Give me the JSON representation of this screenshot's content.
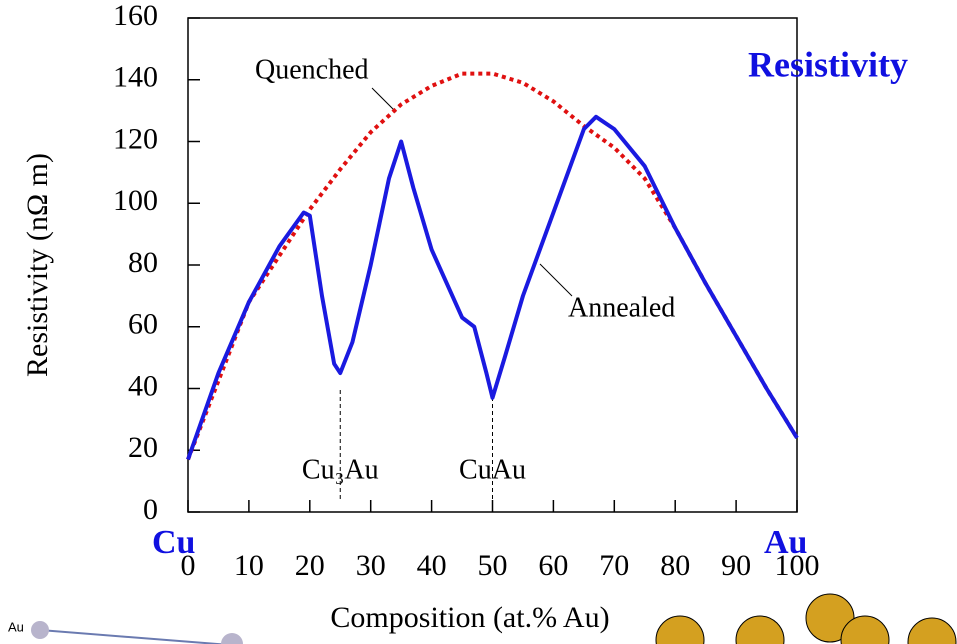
{
  "chart_data": {
    "type": "line",
    "xlabel": "Composition (at.% Au)",
    "ylabel": "Resistivity (nΩ m)",
    "xlim": [
      0,
      100
    ],
    "xticks": [
      0,
      10,
      20,
      30,
      40,
      50,
      60,
      70,
      80,
      90,
      100
    ],
    "ylim": [
      0,
      160
    ],
    "yticks": [
      0,
      20,
      40,
      60,
      80,
      100,
      120,
      140,
      160
    ],
    "series": [
      {
        "name": "Quenched",
        "color": "#e01010",
        "style": "dotted",
        "x": [
          0,
          10,
          20,
          25,
          30,
          35,
          40,
          45,
          50,
          55,
          60,
          65,
          70,
          75,
          80,
          85,
          90,
          95,
          100
        ],
        "values": [
          17,
          68,
          98,
          111,
          123,
          132,
          138,
          142,
          142,
          139,
          133,
          125,
          118,
          108,
          92,
          74,
          57,
          40,
          24
        ]
      },
      {
        "name": "Annealed",
        "color": "#1a1ae0",
        "style": "solid",
        "x": [
          0,
          5,
          10,
          15,
          19,
          20,
          22,
          24,
          25,
          27,
          30,
          33,
          35,
          37,
          40,
          45,
          47,
          49,
          50,
          52,
          55,
          60,
          65,
          67,
          70,
          75,
          80,
          85,
          90,
          95,
          100
        ],
        "values": [
          17,
          45,
          68,
          86,
          97,
          96,
          70,
          48,
          45,
          55,
          80,
          108,
          120,
          105,
          85,
          63,
          60,
          45,
          37,
          50,
          70,
          97,
          124,
          128,
          124,
          112,
          92,
          74,
          57,
          40,
          24
        ]
      }
    ],
    "annotations": [
      {
        "text": "Cu₃Au",
        "x": 25
      },
      {
        "text": "CuAu",
        "x": 50
      }
    ],
    "end_labels": [
      "Cu",
      "Au"
    ],
    "corner_label": "Resistivity",
    "image_label": "Au"
  }
}
